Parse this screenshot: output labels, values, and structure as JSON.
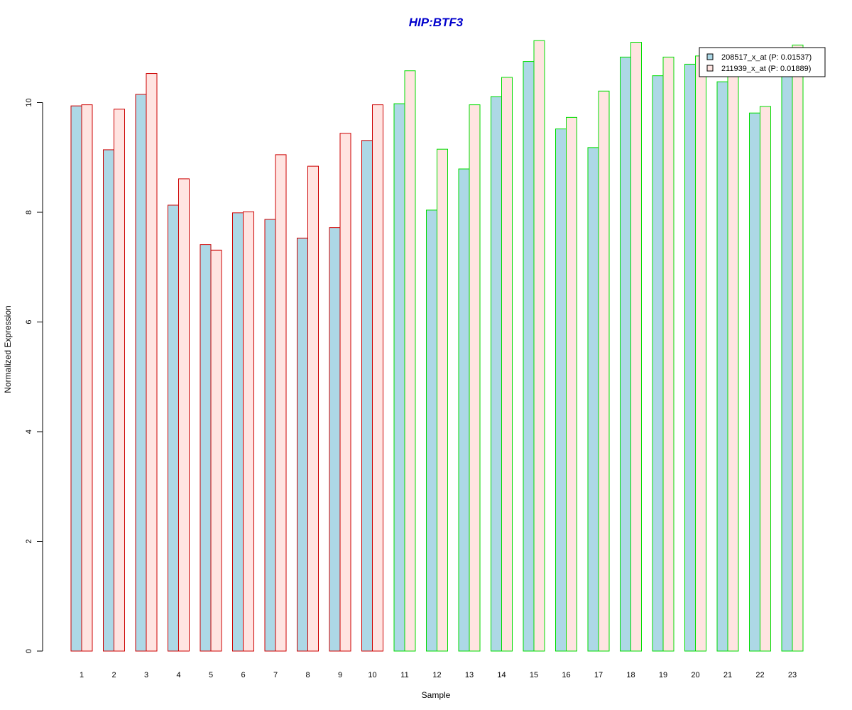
{
  "chart_data": {
    "type": "bar",
    "title": "HIP:BTF3",
    "title_color": "#0000CC",
    "xlabel": "Sample",
    "ylabel": "Normalized Expression",
    "ylim": [
      0,
      11.1
    ],
    "yticks": [
      0,
      2,
      4,
      6,
      8,
      10
    ],
    "grid": false,
    "legend_position": "top-right",
    "categories": [
      "1",
      "2",
      "3",
      "4",
      "5",
      "6",
      "7",
      "8",
      "9",
      "10",
      "11",
      "12",
      "13",
      "14",
      "15",
      "16",
      "17",
      "18",
      "19",
      "20",
      "21",
      "22",
      "23"
    ],
    "group_border_colors": [
      "#CC0000",
      "#CC0000",
      "#CC0000",
      "#CC0000",
      "#CC0000",
      "#CC0000",
      "#CC0000",
      "#CC0000",
      "#CC0000",
      "#CC0000",
      "#00DD00",
      "#00DD00",
      "#00DD00",
      "#00DD00",
      "#00DD00",
      "#00DD00",
      "#00DD00",
      "#00DD00",
      "#00DD00",
      "#00DD00",
      "#00DD00",
      "#00DD00",
      "#00DD00"
    ],
    "series": [
      {
        "name": "208517_x_at (P: 0.01537)",
        "fill": "#ADD8E6",
        "values": [
          9.94,
          9.14,
          10.15,
          8.13,
          7.41,
          7.99,
          7.87,
          7.53,
          7.72,
          9.31,
          9.98,
          8.04,
          8.79,
          10.11,
          10.75,
          9.52,
          9.18,
          10.83,
          10.49,
          10.7,
          10.38,
          9.81,
          10.5
        ]
      },
      {
        "name": "211939_x_at (P: 0.01889)",
        "fill": "#FFE4E1",
        "values": [
          9.96,
          9.88,
          10.53,
          8.61,
          7.31,
          8.01,
          9.05,
          8.84,
          9.44,
          9.96,
          10.58,
          9.15,
          9.96,
          10.46,
          11.13,
          9.73,
          10.21,
          11.1,
          10.83,
          10.85,
          10.5,
          9.93,
          11.05
        ]
      }
    ]
  }
}
